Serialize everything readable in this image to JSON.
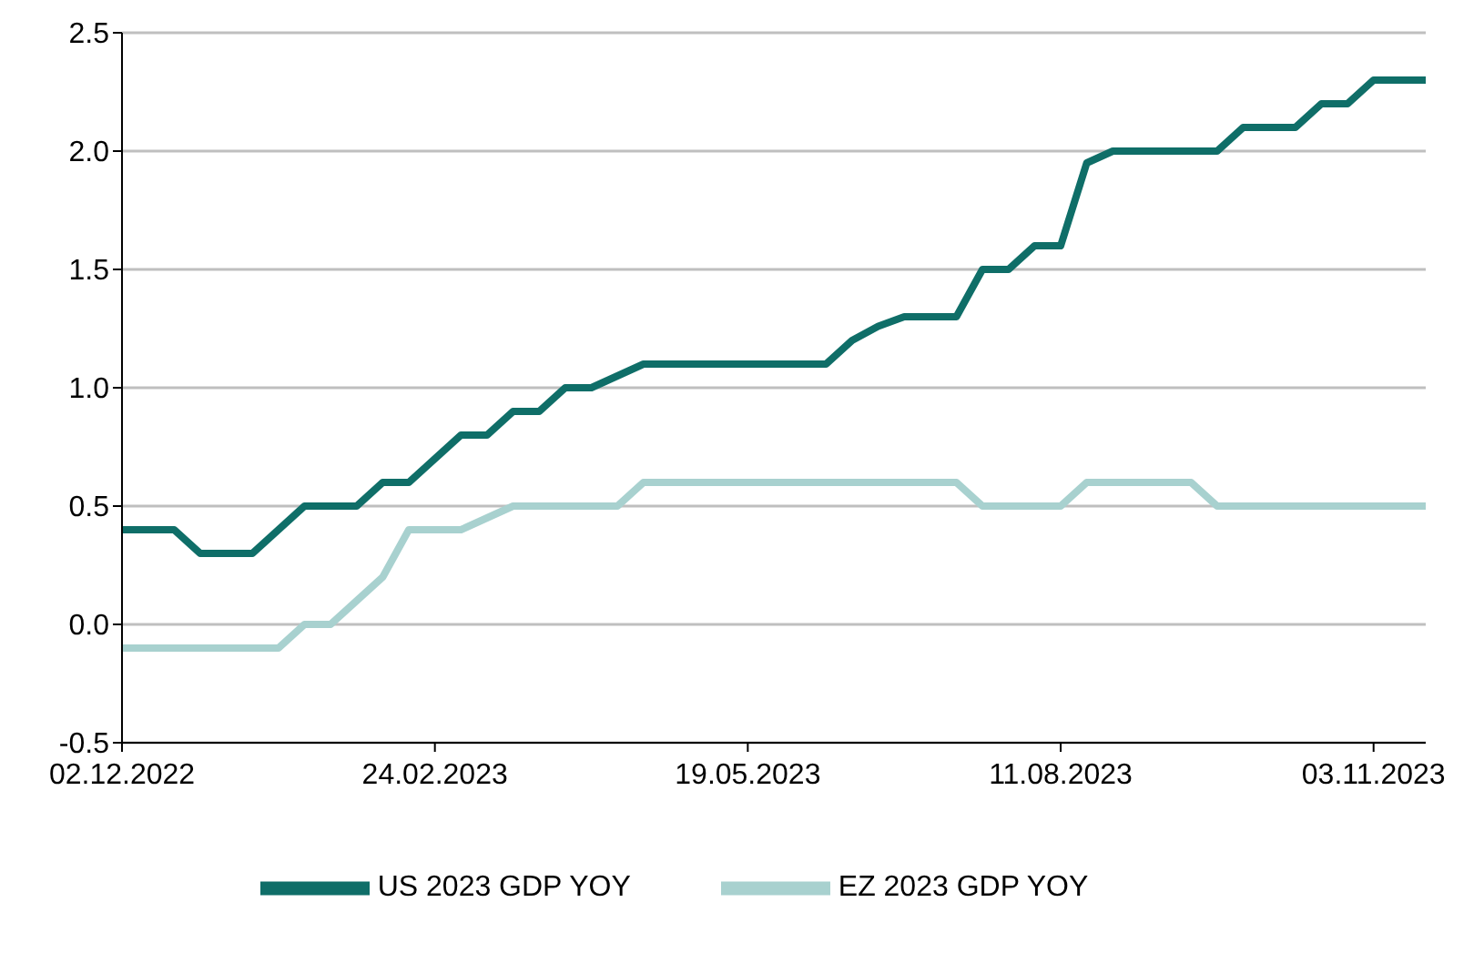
{
  "chart_data": {
    "type": "line",
    "x": [
      "2022-12-02",
      "2022-12-09",
      "2022-12-16",
      "2022-12-23",
      "2022-12-30",
      "2023-01-06",
      "2023-01-13",
      "2023-01-20",
      "2023-01-27",
      "2023-02-03",
      "2023-02-10",
      "2023-02-17",
      "2023-02-24",
      "2023-03-03",
      "2023-03-10",
      "2023-03-17",
      "2023-03-24",
      "2023-03-31",
      "2023-04-07",
      "2023-04-14",
      "2023-04-21",
      "2023-04-28",
      "2023-05-05",
      "2023-05-12",
      "2023-05-19",
      "2023-05-26",
      "2023-06-02",
      "2023-06-09",
      "2023-06-16",
      "2023-06-23",
      "2023-06-30",
      "2023-07-07",
      "2023-07-14",
      "2023-07-21",
      "2023-07-28",
      "2023-08-04",
      "2023-08-11",
      "2023-08-18",
      "2023-08-25",
      "2023-09-01",
      "2023-09-08",
      "2023-09-15",
      "2023-09-22",
      "2023-09-29",
      "2023-10-06",
      "2023-10-13",
      "2023-10-20",
      "2023-10-27",
      "2023-11-03",
      "2023-11-10",
      "2023-11-17"
    ],
    "series": [
      {
        "name": "US 2023 GDP YOY",
        "color": "#0f6e68",
        "values": [
          0.4,
          0.4,
          0.4,
          0.3,
          0.3,
          0.3,
          0.4,
          0.5,
          0.5,
          0.5,
          0.6,
          0.6,
          0.7,
          0.8,
          0.8,
          0.9,
          0.9,
          1.0,
          1.0,
          1.05,
          1.1,
          1.1,
          1.1,
          1.1,
          1.1,
          1.1,
          1.1,
          1.1,
          1.2,
          1.26,
          1.3,
          1.3,
          1.3,
          1.5,
          1.5,
          1.6,
          1.6,
          1.95,
          2.0,
          2.0,
          2.0,
          2.0,
          2.0,
          2.1,
          2.1,
          2.1,
          2.2,
          2.2,
          2.3,
          2.3,
          2.3
        ]
      },
      {
        "name": "EZ 2023 GDP YOY",
        "color": "#a8d1cf",
        "values": [
          -0.1,
          -0.1,
          -0.1,
          -0.1,
          -0.1,
          -0.1,
          -0.1,
          0.0,
          0.0,
          0.1,
          0.2,
          0.4,
          0.4,
          0.4,
          0.45,
          0.5,
          0.5,
          0.5,
          0.5,
          0.5,
          0.6,
          0.6,
          0.6,
          0.6,
          0.6,
          0.6,
          0.6,
          0.6,
          0.6,
          0.6,
          0.6,
          0.6,
          0.6,
          0.5,
          0.5,
          0.5,
          0.5,
          0.6,
          0.6,
          0.6,
          0.6,
          0.6,
          0.5,
          0.5,
          0.5,
          0.5,
          0.5,
          0.5,
          0.5,
          0.5,
          0.5
        ]
      }
    ],
    "xlim": [
      "2022-12-02",
      "2023-11-17"
    ],
    "xticks": [
      {
        "value": "2022-12-02",
        "label": "02.12.2022"
      },
      {
        "value": "2023-02-24",
        "label": "24.02.2023"
      },
      {
        "value": "2023-05-19",
        "label": "19.05.2023"
      },
      {
        "value": "2023-08-11",
        "label": "11.08.2023"
      },
      {
        "value": "2023-11-03",
        "label": "03.11.2023"
      }
    ],
    "ylim": [
      -0.5,
      2.5
    ],
    "yticks": [
      -0.5,
      {
        "value": 0,
        "label": "0.0"
      },
      0.5,
      {
        "value": 1,
        "label": "1.0"
      },
      1.5,
      {
        "value": 2,
        "label": "2.0"
      },
      2.5
    ],
    "grid": "y",
    "legend": "bottom",
    "line_style": "solid"
  }
}
